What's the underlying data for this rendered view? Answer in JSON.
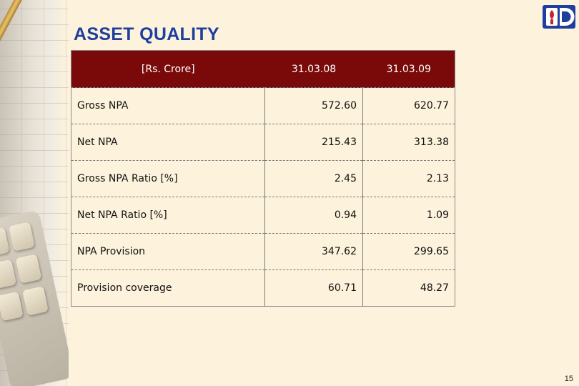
{
  "slide": {
    "title": "ASSET QUALITY",
    "page_number": "15"
  },
  "table": {
    "header": [
      "[Rs. Crore]",
      "31.03.08",
      "31.03.09"
    ],
    "rows": [
      {
        "label": "Gross NPA",
        "v1": "572.60",
        "v2": "620.77"
      },
      {
        "label": "Net NPA",
        "v1": "215.43",
        "v2": "313.38"
      },
      {
        "label": "Gross NPA Ratio [%]",
        "v1": "2.45",
        "v2": "2.13"
      },
      {
        "label": "Net NPA Ratio [%]",
        "v1": "0.94",
        "v2": "1.09"
      },
      {
        "label": "NPA Provision",
        "v1": "347.62",
        "v2": "299.65"
      },
      {
        "label": "Provision coverage",
        "v1": "60.71",
        "v2": "48.27"
      }
    ]
  },
  "colors": {
    "title": "#1f3f9e",
    "header_bg": "#7a0a0a",
    "background": "#fdf3dc",
    "logo_blue": "#1f3f9e",
    "logo_red": "#c0282b"
  },
  "icons": {
    "logo": "bank-logo-icon"
  }
}
